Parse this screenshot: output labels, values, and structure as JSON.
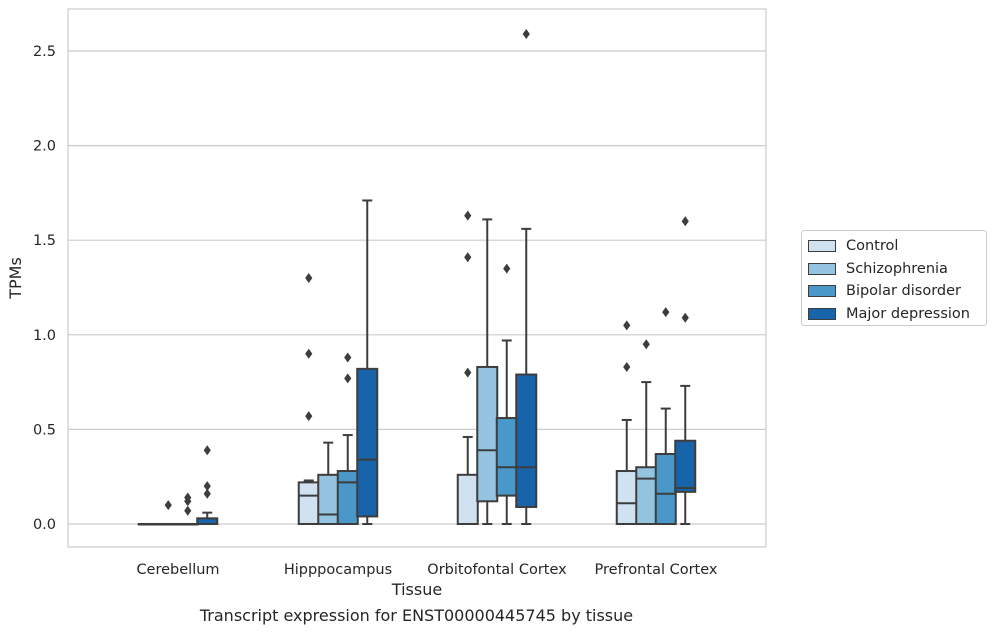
{
  "caption": "Transcript expression for ENST00000445745 by tissue",
  "chart_data": {
    "type": "box",
    "xlabel": "Tissue",
    "ylabel": "TPMs",
    "ylim": [
      -0.13,
      2.72
    ],
    "yticks": [
      0.0,
      0.5,
      1.0,
      1.5,
      2.0,
      2.5
    ],
    "ytick_labels": [
      "0.0",
      "0.5",
      "1.0",
      "1.5",
      "2.0",
      "2.5"
    ],
    "grid": true,
    "legend_position": "right",
    "categories": [
      "Cerebellum",
      "Hipppocampus",
      "Orbitofontal Cortex",
      "Prefrontal Cortex"
    ],
    "series": [
      {
        "name": "Control",
        "color": "#d0e1f2",
        "boxes": [
          {
            "whislo": 0.0,
            "q1": 0.0,
            "med": 0.0,
            "q3": 0.0,
            "whishi": 0.0,
            "fliers": []
          },
          {
            "whislo": 0.0,
            "q1": 0.0,
            "med": 0.15,
            "q3": 0.22,
            "whishi": 0.23,
            "fliers": [
              0.57,
              0.9,
              1.3
            ]
          },
          {
            "whislo": 0.0,
            "q1": 0.0,
            "med": 0.0,
            "q3": 0.26,
            "whishi": 0.46,
            "fliers": [
              0.8,
              1.41,
              1.63
            ]
          },
          {
            "whislo": 0.0,
            "q1": 0.0,
            "med": 0.11,
            "q3": 0.28,
            "whishi": 0.55,
            "fliers": [
              0.83,
              1.05
            ]
          }
        ]
      },
      {
        "name": "Schizophrenia",
        "color": "#94c4df",
        "boxes": [
          {
            "whislo": 0.0,
            "q1": 0.0,
            "med": 0.0,
            "q3": 0.0,
            "whishi": 0.0,
            "fliers": [
              0.1
            ]
          },
          {
            "whislo": 0.0,
            "q1": 0.0,
            "med": 0.05,
            "q3": 0.26,
            "whishi": 0.43,
            "fliers": []
          },
          {
            "whislo": 0.0,
            "q1": 0.12,
            "med": 0.39,
            "q3": 0.83,
            "whishi": 1.61,
            "fliers": []
          },
          {
            "whislo": 0.0,
            "q1": 0.0,
            "med": 0.24,
            "q3": 0.3,
            "whishi": 0.75,
            "fliers": [
              0.95
            ]
          }
        ]
      },
      {
        "name": "Bipolar disorder",
        "color": "#4a98c9",
        "boxes": [
          {
            "whislo": 0.0,
            "q1": 0.0,
            "med": 0.0,
            "q3": 0.0,
            "whishi": 0.0,
            "fliers": [
              0.07,
              0.12,
              0.14
            ]
          },
          {
            "whislo": 0.0,
            "q1": 0.0,
            "med": 0.22,
            "q3": 0.28,
            "whishi": 0.47,
            "fliers": [
              0.77,
              0.88
            ]
          },
          {
            "whislo": 0.0,
            "q1": 0.15,
            "med": 0.3,
            "q3": 0.56,
            "whishi": 0.97,
            "fliers": [
              1.35
            ]
          },
          {
            "whislo": 0.0,
            "q1": 0.0,
            "med": 0.16,
            "q3": 0.37,
            "whishi": 0.61,
            "fliers": [
              1.12
            ]
          }
        ]
      },
      {
        "name": "Major depression",
        "color": "#1764ab",
        "boxes": [
          {
            "whislo": 0.0,
            "q1": 0.0,
            "med": 0.0,
            "q3": 0.03,
            "whishi": 0.06,
            "fliers": [
              0.16,
              0.2,
              0.39
            ]
          },
          {
            "whislo": 0.0,
            "q1": 0.04,
            "med": 0.34,
            "q3": 0.82,
            "whishi": 1.71,
            "fliers": []
          },
          {
            "whislo": 0.0,
            "q1": 0.09,
            "med": 0.3,
            "q3": 0.79,
            "whishi": 1.56,
            "fliers": [
              2.59
            ]
          },
          {
            "whislo": 0.0,
            "q1": 0.17,
            "med": 0.19,
            "q3": 0.44,
            "whishi": 0.73,
            "fliers": [
              1.09,
              1.6
            ]
          }
        ]
      }
    ]
  }
}
